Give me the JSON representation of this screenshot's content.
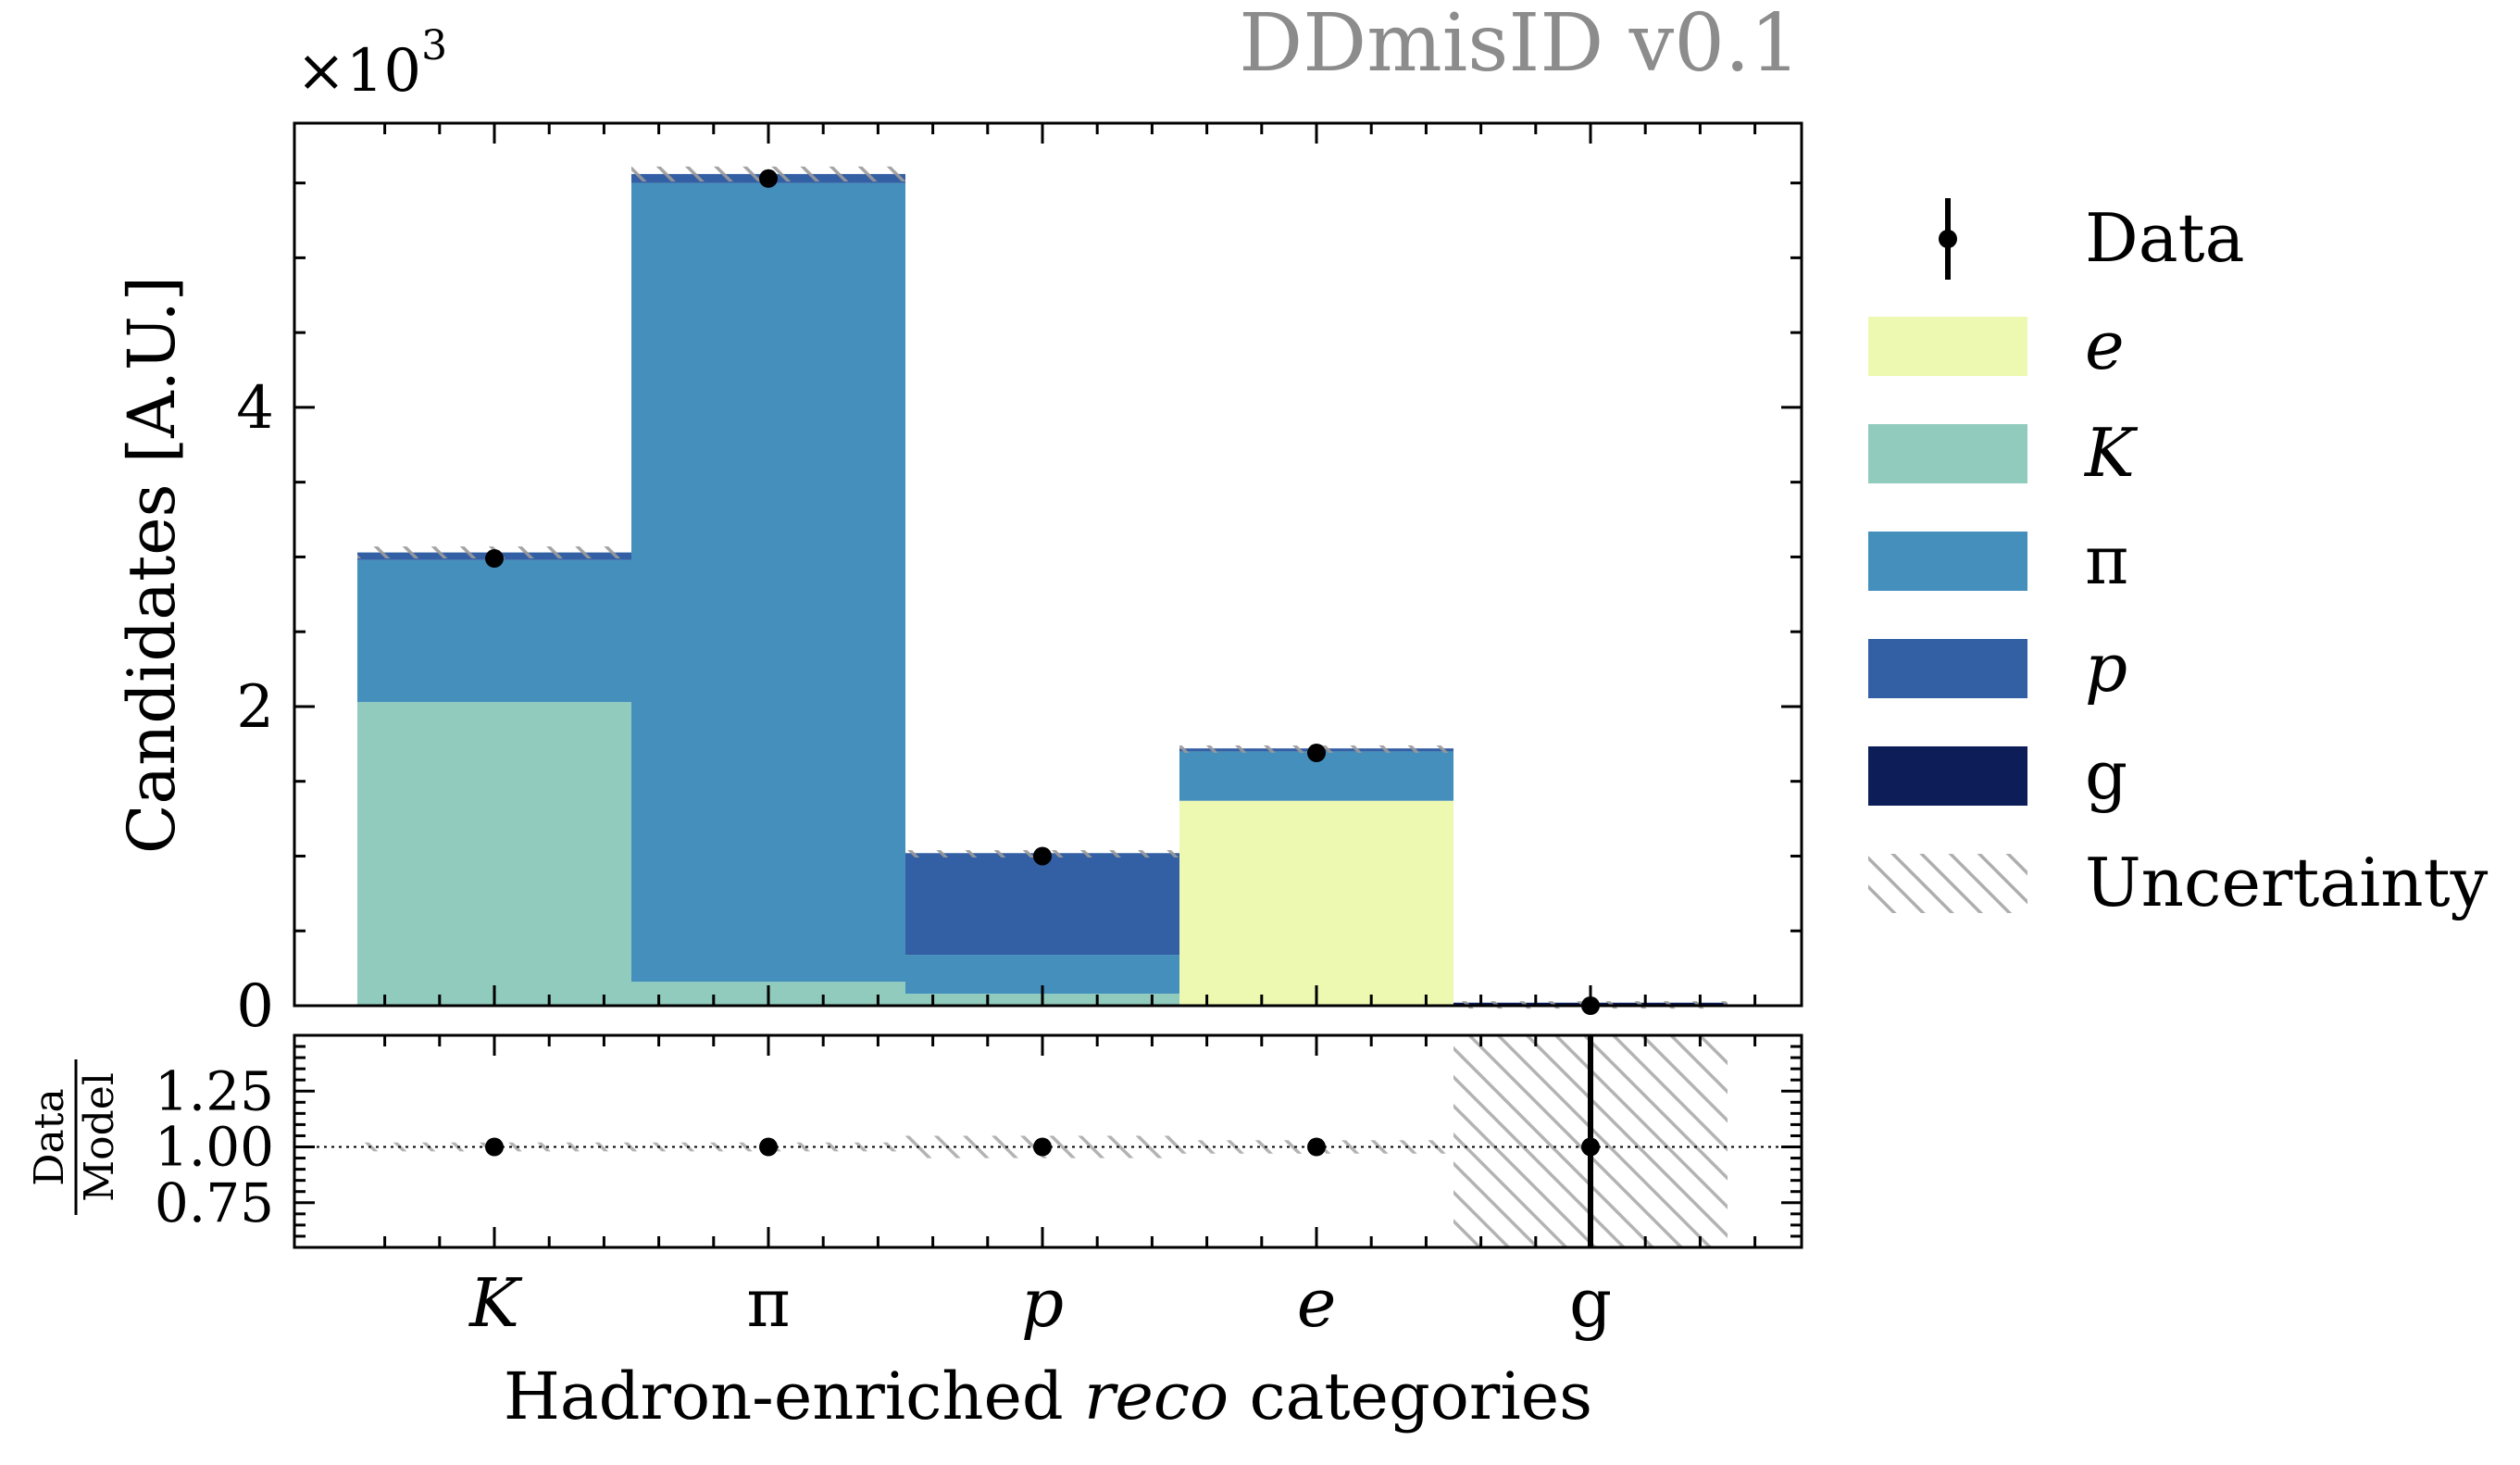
{
  "chart_data": {
    "type": "bar",
    "stacked": true,
    "watermark": "DDmisID v0.1",
    "ylabel": "Candidates [A.U.]",
    "y_multiplier_label": "×10",
    "y_multiplier_exp": "3",
    "xlabel_pre": "Hadron-enriched ",
    "xlabel_em": "reco",
    "xlabel_post": " categories",
    "categories": [
      "K",
      "π",
      "p",
      "e",
      "g"
    ],
    "category_italic": [
      true,
      false,
      true,
      true,
      false
    ],
    "ylim": [
      0,
      5.9
    ],
    "yticks": [
      0,
      2,
      4
    ],
    "ytick_labels": [
      "0",
      "2",
      "4"
    ],
    "series": [
      {
        "name": "e",
        "color": "#edf8b1",
        "values": [
          0.0,
          0.0,
          0.0,
          1.37,
          0.0
        ]
      },
      {
        "name": "K",
        "color": "#90cbbd",
        "values": [
          2.03,
          0.16,
          0.08,
          0.0,
          0.0
        ]
      },
      {
        "name": "π",
        "color": "#458fbc",
        "values": [
          0.95,
          5.34,
          0.26,
          0.33,
          0.0
        ]
      },
      {
        "name": "p",
        "color": "#335fa4",
        "values": [
          0.05,
          0.06,
          0.68,
          0.02,
          0.0
        ]
      },
      {
        "name": "g",
        "color": "#0c1d58",
        "values": [
          0.0,
          0.0,
          0.0,
          0.0,
          0.02
        ]
      }
    ],
    "data": {
      "name": "Data",
      "values": [
        2.99,
        5.53,
        1.0,
        1.69,
        0.0
      ],
      "errors": [
        0.02,
        0.03,
        0.015,
        0.015,
        0.01
      ]
    },
    "uncertainty": {
      "name": "Uncertainty",
      "values": [
        0.04,
        0.05,
        0.02,
        0.02,
        0.01
      ]
    },
    "ratio": {
      "ylabel_num": "Data",
      "ylabel_den": "Model",
      "ylim": [
        0.55,
        1.5
      ],
      "yticks": [
        0.75,
        1.0,
        1.25
      ],
      "ytick_labels": [
        "0.75",
        "1.00",
        "1.25"
      ],
      "values": [
        1.0,
        1.0,
        1.0,
        1.0,
        1.0
      ],
      "errors": [
        0.0,
        0.0,
        0.0,
        0.0,
        0.5
      ],
      "uncertainty": [
        0.02,
        0.02,
        0.05,
        0.03,
        0.5
      ]
    },
    "legend": {
      "position": "right",
      "entries": [
        {
          "label": "Data",
          "kind": "data",
          "italic": false
        },
        {
          "label": "e",
          "kind": "fill",
          "color": "#edf8b1",
          "italic": true
        },
        {
          "label": "K",
          "kind": "fill",
          "color": "#90cbbd",
          "italic": true
        },
        {
          "label": "π",
          "kind": "fill",
          "color": "#458fbc",
          "italic": false
        },
        {
          "label": "p",
          "kind": "fill",
          "color": "#335fa4",
          "italic": true
        },
        {
          "label": "g",
          "kind": "fill",
          "color": "#0c1d58",
          "italic": false
        },
        {
          "label": "Uncertainty",
          "kind": "hatch",
          "italic": false
        }
      ]
    }
  }
}
